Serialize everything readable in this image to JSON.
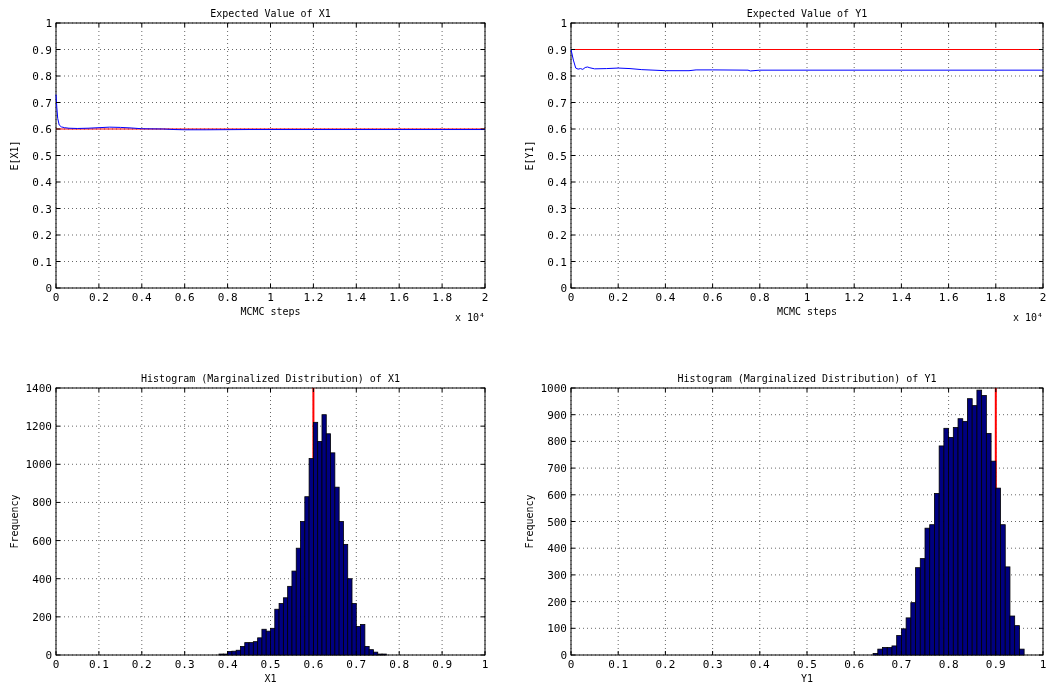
{
  "chart_data": [
    {
      "type": "line",
      "title": "Expected Value of X1",
      "xlabel": "MCMC steps",
      "ylabel": "E[X1]",
      "annotations": [
        "x 10⁴"
      ],
      "grid": true,
      "xlim": [
        0,
        2
      ],
      "ylim": [
        0,
        1
      ],
      "xticks": [
        0,
        0.2,
        0.4,
        0.6,
        0.8,
        1,
        1.2,
        1.4,
        1.6,
        1.8,
        2
      ],
      "yticks": [
        0,
        0.1,
        0.2,
        0.3,
        0.4,
        0.5,
        0.6,
        0.7,
        0.8,
        0.9,
        1
      ],
      "series": [
        {
          "color": "#0000ff",
          "x": [
            0,
            0.004,
            0.008,
            0.015,
            0.025,
            0.04,
            0.06,
            0.1,
            0.15,
            0.2,
            0.25,
            0.3,
            0.35,
            0.4,
            0.5,
            0.55,
            0.6,
            0.7,
            0.9,
            1.2,
            1.5,
            1.8,
            2
          ],
          "values": [
            0.73,
            0.68,
            0.64,
            0.615,
            0.608,
            0.605,
            0.603,
            0.602,
            0.603,
            0.605,
            0.607,
            0.606,
            0.604,
            0.601,
            0.6,
            0.598,
            0.597,
            0.597,
            0.598,
            0.598,
            0.598,
            0.598,
            0.598
          ]
        }
      ],
      "ref_lines": [
        {
          "axis": "y",
          "value": 0.6,
          "color": "#ff0000"
        }
      ]
    },
    {
      "type": "line",
      "title": "Expected Value of Y1",
      "xlabel": "MCMC steps",
      "ylabel": "E[Y1]",
      "annotations": [
        "x 10⁴"
      ],
      "grid": true,
      "xlim": [
        0,
        2
      ],
      "ylim": [
        0,
        1
      ],
      "xticks": [
        0,
        0.2,
        0.4,
        0.6,
        0.8,
        1,
        1.2,
        1.4,
        1.6,
        1.8,
        2
      ],
      "yticks": [
        0,
        0.1,
        0.2,
        0.3,
        0.4,
        0.5,
        0.6,
        0.7,
        0.8,
        0.9,
        1
      ],
      "series": [
        {
          "color": "#0000ff",
          "x": [
            0,
            0.01,
            0.02,
            0.03,
            0.04,
            0.05,
            0.06,
            0.07,
            0.08,
            0.1,
            0.15,
            0.2,
            0.25,
            0.3,
            0.4,
            0.5,
            0.53,
            0.6,
            0.75,
            0.76,
            0.8,
            1,
            1.4,
            2
          ],
          "values": [
            0.9,
            0.86,
            0.83,
            0.826,
            0.828,
            0.825,
            0.832,
            0.834,
            0.831,
            0.827,
            0.828,
            0.83,
            0.828,
            0.824,
            0.82,
            0.82,
            0.823,
            0.823,
            0.822,
            0.819,
            0.822,
            0.822,
            0.822,
            0.822
          ]
        }
      ],
      "ref_lines": [
        {
          "axis": "y",
          "value": 0.9,
          "color": "#ff0000"
        }
      ]
    },
    {
      "type": "histogram",
      "title": "Histogram (Marginalized Distribution) of X1",
      "xlabel": "X1",
      "ylabel": "Frequency",
      "grid": true,
      "xlim": [
        0,
        1
      ],
      "ylim": [
        0,
        1400
      ],
      "color": "#000080",
      "xticks": [
        0,
        0.1,
        0.2,
        0.3,
        0.4,
        0.5,
        0.6,
        0.7,
        0.8,
        0.9,
        1
      ],
      "yticks": [
        0,
        200,
        400,
        600,
        800,
        1000,
        1200,
        1400
      ],
      "bins": [
        0.38,
        0.39,
        0.4,
        0.41,
        0.42,
        0.43,
        0.44,
        0.45,
        0.46,
        0.47,
        0.48,
        0.49,
        0.5,
        0.51,
        0.52,
        0.53,
        0.54,
        0.55,
        0.56,
        0.57,
        0.58,
        0.59,
        0.6,
        0.61,
        0.62,
        0.63,
        0.64,
        0.65,
        0.66,
        0.67,
        0.68,
        0.69,
        0.7,
        0.71,
        0.72,
        0.73,
        0.74,
        0.75,
        0.76,
        0.77
      ],
      "values": [
        5,
        5,
        18,
        20,
        25,
        45,
        65,
        65,
        70,
        90,
        135,
        125,
        140,
        240,
        270,
        300,
        360,
        440,
        560,
        700,
        830,
        1030,
        1220,
        1120,
        1260,
        1160,
        1060,
        880,
        700,
        580,
        400,
        270,
        150,
        160,
        45,
        28,
        15,
        5,
        5
      ],
      "ref_lines": [
        {
          "axis": "x",
          "value": 0.6,
          "color": "#ff0000"
        }
      ]
    },
    {
      "type": "histogram",
      "title": "Histogram (Marginalized Distribution) of Y1",
      "xlabel": "Y1",
      "ylabel": "Frequency",
      "grid": true,
      "xlim": [
        0,
        1
      ],
      "ylim": [
        0,
        1000
      ],
      "color": "#000080",
      "xticks": [
        0,
        0.1,
        0.2,
        0.3,
        0.4,
        0.5,
        0.6,
        0.7,
        0.8,
        0.9,
        1
      ],
      "yticks": [
        0,
        100,
        200,
        300,
        400,
        500,
        600,
        700,
        800,
        900,
        1000
      ],
      "bins": [
        0.64,
        0.65,
        0.66,
        0.67,
        0.68,
        0.69,
        0.7,
        0.71,
        0.72,
        0.73,
        0.74,
        0.75,
        0.76,
        0.77,
        0.78,
        0.79,
        0.8,
        0.81,
        0.82,
        0.83,
        0.84,
        0.85,
        0.86,
        0.87,
        0.88,
        0.89,
        0.9,
        0.91,
        0.92,
        0.93,
        0.94,
        0.95,
        0.96
      ],
      "values": [
        6,
        22,
        28,
        28,
        34,
        73,
        98,
        139,
        196,
        327,
        361,
        475,
        488,
        605,
        783,
        849,
        815,
        852,
        885,
        875,
        960,
        934,
        992,
        972,
        830,
        726,
        625,
        488,
        330,
        146,
        110,
        22
      ],
      "ref_lines": [
        {
          "axis": "x",
          "value": 0.9,
          "color": "#ff0000"
        }
      ]
    }
  ]
}
